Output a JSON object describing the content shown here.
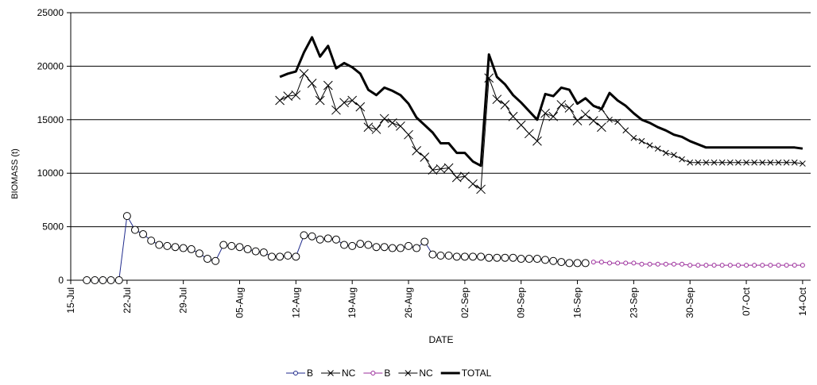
{
  "chart_data": {
    "type": "line",
    "xlabel": "DATE",
    "ylabel": "BIOMASS (t)",
    "ylim": [
      0,
      25000
    ],
    "yticks": [
      "0",
      "5000",
      "10000",
      "15000",
      "20000",
      "25000"
    ],
    "xticks": [
      {
        "label": "15-Jul",
        "day": 0
      },
      {
        "label": "22-Jul",
        "day": 7
      },
      {
        "label": "29-Jul",
        "day": 14
      },
      {
        "label": "05-Aug",
        "day": 21
      },
      {
        "label": "12-Aug",
        "day": 28
      },
      {
        "label": "19-Aug",
        "day": 35
      },
      {
        "label": "26-Aug",
        "day": 42
      },
      {
        "label": "02-Sep",
        "day": 49
      },
      {
        "label": "09-Sep",
        "day": 56
      },
      {
        "label": "16-Sep",
        "day": 63
      },
      {
        "label": "23-Sep",
        "day": 70
      },
      {
        "label": "30-Sep",
        "day": 77
      },
      {
        "label": "07-Oct",
        "day": 84
      },
      {
        "label": "14-Oct",
        "day": 91
      }
    ],
    "grid": "horizontal",
    "legend_position": "bottom",
    "series": [
      {
        "name": "B",
        "color": "#1f2a8c",
        "marker": "circle",
        "x": [
          "17-Jul",
          "18-Jul",
          "19-Jul",
          "20-Jul",
          "21-Jul",
          "22-Jul",
          "23-Jul",
          "24-Jul",
          "25-Jul",
          "26-Jul",
          "27-Jul",
          "28-Jul",
          "29-Jul",
          "30-Jul",
          "31-Jul",
          "01-Aug",
          "02-Aug",
          "03-Aug",
          "04-Aug",
          "05-Aug",
          "06-Aug",
          "07-Aug",
          "08-Aug",
          "09-Aug",
          "10-Aug",
          "11-Aug",
          "12-Aug",
          "13-Aug",
          "14-Aug",
          "15-Aug",
          "16-Aug",
          "17-Aug",
          "18-Aug",
          "19-Aug",
          "20-Aug",
          "21-Aug",
          "22-Aug",
          "23-Aug",
          "24-Aug",
          "25-Aug",
          "26-Aug",
          "27-Aug",
          "28-Aug",
          "29-Aug",
          "30-Aug",
          "31-Aug",
          "01-Sep",
          "02-Sep",
          "03-Sep",
          "04-Sep",
          "05-Sep",
          "06-Sep",
          "07-Sep",
          "08-Sep",
          "09-Sep",
          "10-Sep",
          "11-Sep",
          "12-Sep",
          "13-Sep",
          "14-Sep",
          "15-Sep",
          "16-Sep",
          "17-Sep"
        ],
        "values": [
          0,
          0,
          0,
          0,
          0,
          6000,
          4700,
          4300,
          3700,
          3300,
          3200,
          3100,
          3000,
          2900,
          2500,
          2000,
          1800,
          3300,
          3200,
          3100,
          2900,
          2700,
          2600,
          2200,
          2200,
          2300,
          2200,
          4200,
          4100,
          3800,
          3900,
          3800,
          3300,
          3200,
          3400,
          3300,
          3100,
          3100,
          3000,
          3000,
          3200,
          3000,
          3600,
          2400,
          2300,
          2300,
          2200,
          2200,
          2200,
          2200,
          2100,
          2100,
          2100,
          2100,
          2000,
          2000,
          2000,
          1900,
          1800,
          1700,
          1600,
          1600,
          1600
        ]
      },
      {
        "name": "NC",
        "color": "#000000",
        "marker": "x",
        "x": [
          "10-Aug",
          "11-Aug",
          "12-Aug",
          "13-Aug",
          "14-Aug",
          "15-Aug",
          "16-Aug",
          "17-Aug",
          "18-Aug",
          "19-Aug",
          "20-Aug",
          "21-Aug",
          "22-Aug",
          "23-Aug",
          "24-Aug",
          "25-Aug",
          "26-Aug",
          "27-Aug",
          "28-Aug",
          "29-Aug",
          "30-Aug",
          "31-Aug",
          "01-Sep",
          "02-Sep",
          "03-Sep",
          "04-Sep",
          "05-Sep",
          "06-Sep",
          "07-Sep",
          "08-Sep",
          "09-Sep",
          "10-Sep",
          "11-Sep",
          "12-Sep",
          "13-Sep",
          "14-Sep",
          "15-Sep",
          "16-Sep",
          "17-Sep",
          "18-Sep",
          "19-Sep"
        ],
        "values": [
          16800,
          17200,
          17300,
          19300,
          18400,
          16800,
          18200,
          15900,
          16600,
          16800,
          16200,
          14300,
          14100,
          15100,
          14700,
          14400,
          13600,
          12100,
          11500,
          10300,
          10400,
          10500,
          9600,
          9700,
          9000,
          8500,
          18900,
          16900,
          16400,
          15300,
          14500,
          13700,
          13000,
          15600,
          15300,
          16400,
          16100,
          14900,
          15500,
          14900,
          14300
        ]
      },
      {
        "name": "B",
        "color": "#9b2d9b",
        "marker": "small-circle",
        "x": [
          "18-Sep",
          "19-Sep",
          "20-Sep",
          "21-Sep",
          "22-Sep",
          "23-Sep",
          "24-Sep",
          "25-Sep",
          "26-Sep",
          "27-Sep",
          "28-Sep",
          "29-Sep",
          "30-Sep",
          "01-Oct",
          "02-Oct",
          "03-Oct",
          "04-Oct",
          "05-Oct",
          "06-Oct",
          "07-Oct",
          "08-Oct",
          "09-Oct",
          "10-Oct",
          "11-Oct",
          "12-Oct",
          "13-Oct",
          "14-Oct"
        ],
        "values": [
          1700,
          1700,
          1600,
          1600,
          1600,
          1600,
          1500,
          1500,
          1500,
          1500,
          1500,
          1500,
          1400,
          1400,
          1400,
          1400,
          1400,
          1400,
          1400,
          1400,
          1400,
          1400,
          1400,
          1400,
          1400,
          1400,
          1400
        ]
      },
      {
        "name": "NC",
        "color": "#000000",
        "marker": "small-x",
        "x": [
          "19-Sep",
          "20-Sep",
          "21-Sep",
          "22-Sep",
          "23-Sep",
          "24-Sep",
          "25-Sep",
          "26-Sep",
          "27-Sep",
          "28-Sep",
          "29-Sep",
          "30-Sep",
          "01-Oct",
          "02-Oct",
          "03-Oct",
          "04-Oct",
          "05-Oct",
          "06-Oct",
          "07-Oct",
          "08-Oct",
          "09-Oct",
          "10-Oct",
          "11-Oct",
          "12-Oct",
          "13-Oct",
          "14-Oct"
        ],
        "values": [
          16000,
          15000,
          14800,
          14000,
          13300,
          13000,
          12600,
          12300,
          11900,
          11700,
          11300,
          11000,
          11000,
          11000,
          11000,
          11000,
          11000,
          11000,
          11000,
          11000,
          11000,
          11000,
          11000,
          11000,
          11000,
          10900
        ]
      },
      {
        "name": "TOTAL",
        "color": "#000000",
        "marker": "none",
        "x": [
          "10-Aug",
          "11-Aug",
          "12-Aug",
          "13-Aug",
          "14-Aug",
          "15-Aug",
          "16-Aug",
          "17-Aug",
          "18-Aug",
          "19-Aug",
          "20-Aug",
          "21-Aug",
          "22-Aug",
          "23-Aug",
          "24-Aug",
          "25-Aug",
          "26-Aug",
          "27-Aug",
          "28-Aug",
          "29-Aug",
          "30-Aug",
          "31-Aug",
          "01-Sep",
          "02-Sep",
          "03-Sep",
          "04-Sep",
          "05-Sep",
          "06-Sep",
          "07-Sep",
          "08-Sep",
          "09-Sep",
          "10-Sep",
          "11-Sep",
          "12-Sep",
          "13-Sep",
          "14-Sep",
          "15-Sep",
          "16-Sep",
          "17-Sep",
          "18-Sep",
          "19-Sep",
          "20-Sep",
          "21-Sep",
          "22-Sep",
          "23-Sep",
          "24-Sep",
          "25-Sep",
          "26-Sep",
          "27-Sep",
          "28-Sep",
          "29-Sep",
          "30-Sep",
          "01-Oct",
          "02-Oct",
          "03-Oct",
          "04-Oct",
          "05-Oct",
          "06-Oct",
          "07-Oct",
          "08-Oct",
          "09-Oct",
          "10-Oct",
          "11-Oct",
          "12-Oct",
          "13-Oct",
          "14-Oct"
        ],
        "values": [
          19000,
          19300,
          19500,
          21300,
          22700,
          20900,
          21900,
          19800,
          20300,
          19900,
          19300,
          17800,
          17300,
          18000,
          17700,
          17300,
          16500,
          15200,
          14500,
          13800,
          12800,
          12800,
          11900,
          11900,
          11100,
          10700,
          21100,
          19000,
          18300,
          17300,
          16600,
          15800,
          15000,
          17400,
          17200,
          18000,
          17800,
          16500,
          17000,
          16300,
          16000,
          17500,
          16800,
          16300,
          15600,
          15000,
          14700,
          14300,
          14000,
          13600,
          13400,
          13000,
          12700,
          12400,
          12400,
          12400,
          12400,
          12400,
          12400,
          12400,
          12400,
          12400,
          12400,
          12400,
          12400,
          12300
        ]
      }
    ]
  }
}
